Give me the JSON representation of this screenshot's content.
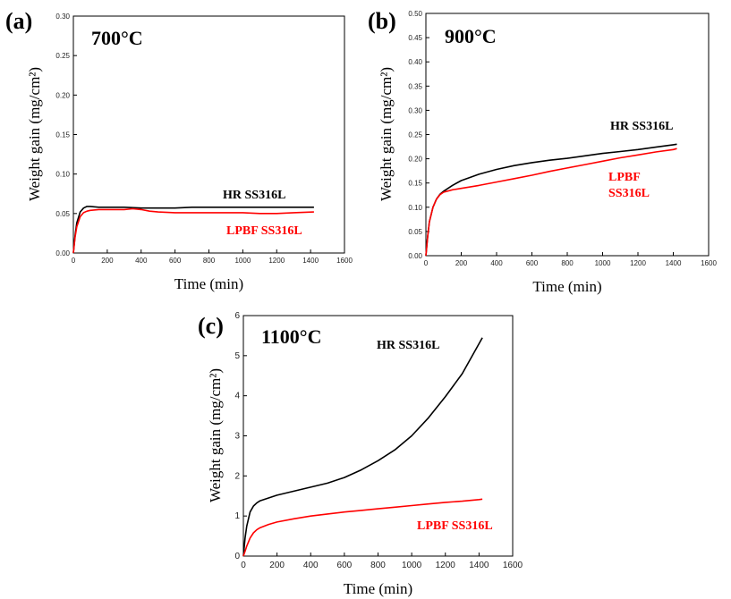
{
  "chart_data": [
    {
      "type": "line",
      "panel_label": "(a)",
      "temperature_label": "700°C",
      "xlabel": "Time (min)",
      "ylabel": "Weight gain (mg/cm²)",
      "xlim": [
        0,
        1600
      ],
      "ylim": [
        0,
        0.3
      ],
      "x_ticks": [
        "0",
        "200",
        "400",
        "600",
        "800",
        "1000",
        "1200",
        "1400",
        "1600"
      ],
      "y_ticks": [
        "0.00",
        "0.05",
        "0.10",
        "0.15",
        "0.20",
        "0.25",
        "0.30"
      ],
      "series": [
        {
          "name": "HR SS316L",
          "color": "#000000",
          "x": [
            0,
            10,
            20,
            40,
            60,
            80,
            100,
            150,
            200,
            300,
            400,
            500,
            600,
            700,
            800,
            900,
            1000,
            1100,
            1200,
            1300,
            1420
          ],
          "y": [
            0,
            0.022,
            0.038,
            0.052,
            0.057,
            0.059,
            0.059,
            0.058,
            0.058,
            0.058,
            0.057,
            0.057,
            0.057,
            0.058,
            0.058,
            0.058,
            0.058,
            0.058,
            0.058,
            0.058,
            0.058
          ]
        },
        {
          "name": "LPBF SS316L",
          "color": "#ff0000",
          "x": [
            0,
            10,
            20,
            40,
            60,
            80,
            100,
            150,
            200,
            300,
            350,
            400,
            450,
            500,
            600,
            700,
            800,
            900,
            1000,
            1100,
            1200,
            1300,
            1420
          ],
          "y": [
            0,
            0.02,
            0.033,
            0.046,
            0.051,
            0.053,
            0.054,
            0.055,
            0.055,
            0.055,
            0.056,
            0.055,
            0.053,
            0.052,
            0.051,
            0.051,
            0.051,
            0.051,
            0.051,
            0.05,
            0.05,
            0.051,
            0.052
          ]
        }
      ]
    },
    {
      "type": "line",
      "panel_label": "(b)",
      "temperature_label": "900°C",
      "xlabel": "Time (min)",
      "ylabel": "Weight gain (mg/cm²)",
      "xlim": [
        0,
        1600
      ],
      "ylim": [
        0,
        0.5
      ],
      "x_ticks": [
        "0",
        "200",
        "400",
        "600",
        "800",
        "1000",
        "1200",
        "1400",
        "1600"
      ],
      "y_ticks": [
        "0.00",
        "0.05",
        "0.10",
        "0.15",
        "0.20",
        "0.25",
        "0.30",
        "0.35",
        "0.40",
        "0.45",
        "0.50"
      ],
      "series": [
        {
          "name": "HR SS316L",
          "color": "#000000",
          "x": [
            0,
            10,
            20,
            40,
            60,
            80,
            100,
            150,
            200,
            300,
            400,
            500,
            600,
            700,
            800,
            900,
            1000,
            1100,
            1200,
            1300,
            1400,
            1420
          ],
          "y": [
            0,
            0.04,
            0.07,
            0.1,
            0.117,
            0.127,
            0.133,
            0.145,
            0.155,
            0.168,
            0.178,
            0.186,
            0.192,
            0.197,
            0.201,
            0.206,
            0.211,
            0.215,
            0.219,
            0.224,
            0.229,
            0.23
          ]
        },
        {
          "name": "LPBF SS316L",
          "color": "#ff0000",
          "x": [
            0,
            10,
            20,
            40,
            60,
            80,
            100,
            150,
            200,
            300,
            400,
            500,
            600,
            700,
            800,
            900,
            1000,
            1100,
            1200,
            1300,
            1400,
            1420
          ],
          "y": [
            0,
            0.04,
            0.07,
            0.1,
            0.117,
            0.126,
            0.131,
            0.136,
            0.139,
            0.145,
            0.152,
            0.159,
            0.166,
            0.174,
            0.181,
            0.188,
            0.195,
            0.202,
            0.208,
            0.214,
            0.219,
            0.221
          ]
        }
      ],
      "annotations": [
        "HR SS316L",
        "LPBF",
        "SS316L"
      ]
    },
    {
      "type": "line",
      "panel_label": "(c)",
      "temperature_label": "1100°C",
      "xlabel": "Time (min)",
      "ylabel": "Weight gain (mg/cm²)",
      "xlim": [
        0,
        1600
      ],
      "ylim": [
        0,
        6
      ],
      "x_ticks": [
        "0",
        "200",
        "400",
        "600",
        "800",
        "1000",
        "1200",
        "1400",
        "1600"
      ],
      "y_ticks": [
        "0",
        "1",
        "2",
        "3",
        "4",
        "5",
        "6"
      ],
      "series": [
        {
          "name": "HR SS316L",
          "color": "#000000",
          "x": [
            0,
            10,
            20,
            40,
            60,
            80,
            100,
            150,
            200,
            300,
            400,
            500,
            600,
            700,
            800,
            900,
            1000,
            1100,
            1200,
            1300,
            1400,
            1420
          ],
          "y": [
            0,
            0.45,
            0.75,
            1.1,
            1.25,
            1.33,
            1.38,
            1.45,
            1.52,
            1.62,
            1.72,
            1.82,
            1.96,
            2.15,
            2.38,
            2.65,
            3.0,
            3.45,
            3.98,
            4.55,
            5.3,
            5.45
          ]
        },
        {
          "name": "LPBF SS316L",
          "color": "#ff0000",
          "x": [
            0,
            10,
            20,
            40,
            60,
            80,
            100,
            150,
            200,
            300,
            400,
            500,
            600,
            700,
            800,
            900,
            1000,
            1100,
            1200,
            1300,
            1400,
            1420
          ],
          "y": [
            0,
            0.12,
            0.25,
            0.45,
            0.58,
            0.66,
            0.71,
            0.79,
            0.85,
            0.93,
            1.0,
            1.05,
            1.1,
            1.14,
            1.18,
            1.22,
            1.26,
            1.3,
            1.34,
            1.37,
            1.41,
            1.42
          ]
        }
      ]
    }
  ],
  "series_labels": {
    "a_hr": "HR SS316L",
    "a_lpbf": "LPBF SS316L",
    "b_hr": "HR SS316L",
    "b_lpbf_line1": "LPBF",
    "b_lpbf_line2": "SS316L",
    "c_hr": "HR SS316L",
    "c_lpbf": "LPBF SS316L"
  }
}
